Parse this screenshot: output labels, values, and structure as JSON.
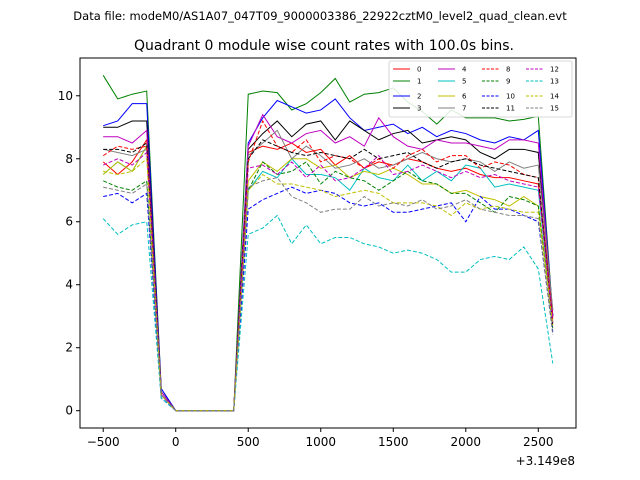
{
  "chart_data": {
    "type": "line",
    "suptitle": "Data file: modeM0/AS1A07_047T09_9000003386_22922cztM0_level2_quad_clean.evt",
    "title": "Quadrant 0 module wise count rates with 100.0s bins.",
    "xlabel": "",
    "ylabel": "",
    "x_offset_label": "+3.149e8",
    "xlim": [
      -660,
      2760
    ],
    "ylim": [
      -0.55,
      11.2
    ],
    "xticks": [
      -500,
      0,
      500,
      1000,
      1500,
      2000,
      2500
    ],
    "xtick_labels": [
      "−500",
      "0",
      "500",
      "1000",
      "1500",
      "2000",
      "2500"
    ],
    "yticks": [
      0,
      2,
      4,
      6,
      8,
      10
    ],
    "ytick_labels": [
      "0",
      "2",
      "4",
      "6",
      "8",
      "10"
    ],
    "grid": false,
    "legend_position": "top-right",
    "x": [
      -500,
      -400,
      -300,
      -200,
      -100,
      0,
      100,
      200,
      300,
      400,
      500,
      600,
      700,
      800,
      900,
      1000,
      1100,
      1200,
      1300,
      1400,
      1500,
      1600,
      1700,
      1800,
      1900,
      2000,
      2100,
      2200,
      2300,
      2400,
      2500,
      2600
    ],
    "series": [
      {
        "name": "0",
        "color": "#ff0000",
        "dash": "solid",
        "values": [
          7.9,
          7.5,
          7.9,
          8.6,
          0.5,
          0,
          0,
          0,
          0,
          0,
          8.2,
          8.4,
          8.3,
          8.5,
          8.2,
          8.3,
          7.8,
          8.1,
          7.7,
          7.9,
          7.8,
          8.0,
          7.9,
          7.7,
          7.6,
          7.7,
          7.5,
          7.4,
          7.4,
          7.3,
          7.2,
          3.2
        ]
      },
      {
        "name": "1",
        "color": "#008000",
        "dash": "solid",
        "values": [
          10.65,
          9.9,
          10.05,
          10.15,
          0.7,
          0,
          0,
          0,
          0,
          0,
          10.05,
          10.15,
          10.1,
          9.55,
          9.75,
          10.1,
          10.55,
          9.8,
          10.05,
          10.1,
          10.25,
          9.8,
          9.5,
          9.1,
          9.55,
          9.3,
          9.3,
          9.3,
          9.2,
          9.25,
          9.35,
          3.0
        ]
      },
      {
        "name": "2",
        "color": "#0000ff",
        "dash": "solid",
        "values": [
          9.05,
          9.2,
          9.75,
          9.75,
          0.7,
          0,
          0,
          0,
          0,
          0,
          8.5,
          9.3,
          9.85,
          9.65,
          9.45,
          9.55,
          9.9,
          9.3,
          8.9,
          9.0,
          9.1,
          8.8,
          9.0,
          8.7,
          8.9,
          8.8,
          8.6,
          8.5,
          8.7,
          8.6,
          8.9,
          3.0
        ]
      },
      {
        "name": "3",
        "color": "#000000",
        "dash": "solid",
        "values": [
          9.0,
          9.0,
          9.2,
          9.2,
          0.6,
          0,
          0,
          0,
          0,
          0,
          8.3,
          8.8,
          9.2,
          8.7,
          9.1,
          9.2,
          8.6,
          9.2,
          8.9,
          8.6,
          8.8,
          8.9,
          8.5,
          8.6,
          8.7,
          8.6,
          8.2,
          8.0,
          8.3,
          8.3,
          8.2,
          3.0
        ]
      },
      {
        "name": "4",
        "color": "#bf00bf",
        "dash": "solid",
        "values": [
          8.7,
          8.7,
          8.5,
          8.9,
          0.6,
          0,
          0,
          0,
          0,
          0,
          8.4,
          9.4,
          8.7,
          8.5,
          8.8,
          8.9,
          8.5,
          8.7,
          8.4,
          9.3,
          8.7,
          8.4,
          8.3,
          8.6,
          8.5,
          8.5,
          8.4,
          8.3,
          8.6,
          8.6,
          8.5,
          3.0
        ]
      },
      {
        "name": "5",
        "color": "#00bfbf",
        "dash": "solid",
        "values": [
          7.5,
          7.9,
          7.6,
          8.4,
          0.5,
          0,
          0,
          0,
          0,
          0,
          7.0,
          7.6,
          7.4,
          8.0,
          7.5,
          7.5,
          7.4,
          7.0,
          7.7,
          7.4,
          7.3,
          7.8,
          7.3,
          7.6,
          7.3,
          7.8,
          7.7,
          7.1,
          7.2,
          7.1,
          7.0,
          2.8
        ]
      },
      {
        "name": "6",
        "color": "#bfbf00",
        "dash": "solid",
        "values": [
          7.5,
          7.9,
          7.6,
          8.4,
          0.5,
          0,
          0,
          0,
          0,
          0,
          7.3,
          7.9,
          7.6,
          8.0,
          8.0,
          7.7,
          7.8,
          7.4,
          7.6,
          7.5,
          7.7,
          7.5,
          7.2,
          7.2,
          6.9,
          7.0,
          6.8,
          6.7,
          6.5,
          6.8,
          6.5,
          2.8
        ]
      },
      {
        "name": "7",
        "color": "#808080",
        "dash": "solid",
        "values": [
          8.3,
          8.2,
          8.1,
          8.3,
          0.5,
          0,
          0,
          0,
          0,
          0,
          8.1,
          8.5,
          8.9,
          8.0,
          8.4,
          8.1,
          7.7,
          7.8,
          8.0,
          7.7,
          7.8,
          8.0,
          8.2,
          8.0,
          7.9,
          8.0,
          7.9,
          7.6,
          7.9,
          7.7,
          7.8,
          3.2
        ]
      },
      {
        "name": "8",
        "color": "#ff0000",
        "dash": "dashed",
        "values": [
          8.1,
          8.4,
          8.3,
          8.4,
          0.5,
          0,
          0,
          0,
          0,
          0,
          7.9,
          9.2,
          8.4,
          8.2,
          8.6,
          7.9,
          8.1,
          8.0,
          7.7,
          8.0,
          7.7,
          8.1,
          8.3,
          7.9,
          8.1,
          8.1,
          7.7,
          7.9,
          7.8,
          7.5,
          7.4,
          2.9
        ]
      },
      {
        "name": "9",
        "color": "#008000",
        "dash": "dashed",
        "values": [
          7.3,
          7.1,
          7.0,
          7.3,
          0.5,
          0,
          0,
          0,
          0,
          0,
          7.0,
          7.9,
          7.5,
          7.6,
          7.9,
          7.2,
          7.6,
          7.4,
          7.3,
          7.0,
          7.3,
          7.6,
          7.3,
          7.2,
          6.9,
          6.9,
          6.6,
          6.3,
          6.8,
          6.7,
          6.5,
          2.6
        ]
      },
      {
        "name": "10",
        "color": "#0000ff",
        "dash": "dashed",
        "values": [
          6.8,
          6.9,
          6.6,
          6.9,
          0.4,
          0,
          0,
          0,
          0,
          0,
          6.4,
          6.7,
          6.9,
          7.1,
          6.9,
          7.0,
          6.9,
          6.6,
          6.5,
          6.6,
          6.3,
          6.3,
          6.4,
          6.5,
          6.6,
          6.0,
          6.8,
          6.4,
          6.4,
          6.2,
          6.0,
          2.5
        ]
      },
      {
        "name": "11",
        "color": "#000000",
        "dash": "dashed",
        "values": [
          8.3,
          8.3,
          8.2,
          8.5,
          0.5,
          0,
          0,
          0,
          0,
          0,
          8.0,
          8.6,
          8.4,
          8.2,
          8.1,
          8.2,
          8.1,
          8.0,
          8.3,
          8.0,
          8.1,
          8.2,
          7.9,
          7.7,
          7.9,
          8.0,
          7.8,
          7.7,
          7.6,
          7.5,
          7.4,
          2.7
        ]
      },
      {
        "name": "12",
        "color": "#bf00bf",
        "dash": "dashed",
        "values": [
          7.8,
          8.0,
          7.8,
          8.2,
          0.5,
          0,
          0,
          0,
          0,
          0,
          7.7,
          7.8,
          7.5,
          7.9,
          7.4,
          7.8,
          7.3,
          7.4,
          7.7,
          8.1,
          7.5,
          7.6,
          7.8,
          7.6,
          7.4,
          7.6,
          7.4,
          7.5,
          7.3,
          7.2,
          7.1,
          2.8
        ]
      },
      {
        "name": "13",
        "color": "#00bfbf",
        "dash": "dashed",
        "values": [
          6.1,
          5.6,
          5.9,
          6.0,
          0.4,
          0,
          0,
          0,
          0,
          0,
          5.6,
          5.8,
          6.2,
          5.3,
          5.9,
          5.3,
          5.5,
          5.5,
          5.3,
          5.2,
          5.0,
          5.1,
          5.0,
          4.8,
          4.4,
          4.4,
          4.8,
          4.9,
          4.8,
          5.2,
          4.5,
          1.5
        ]
      },
      {
        "name": "14",
        "color": "#bfbf00",
        "dash": "dashed",
        "values": [
          7.6,
          7.5,
          7.6,
          8.0,
          0.5,
          0,
          0,
          0,
          0,
          0,
          7.0,
          7.5,
          7.2,
          7.2,
          7.1,
          7.0,
          6.8,
          6.9,
          7.0,
          6.9,
          6.6,
          6.6,
          6.6,
          6.5,
          6.2,
          6.6,
          6.4,
          6.5,
          6.4,
          6.3,
          6.3,
          2.7
        ]
      },
      {
        "name": "15",
        "color": "#808080",
        "dash": "dashed",
        "values": [
          7.1,
          7.0,
          6.9,
          7.2,
          0.5,
          0,
          0,
          0,
          0,
          0,
          7.1,
          7.3,
          7.4,
          6.8,
          6.6,
          6.3,
          6.4,
          6.4,
          6.8,
          6.5,
          6.6,
          6.5,
          6.7,
          6.4,
          6.5,
          6.7,
          6.4,
          6.3,
          6.2,
          6.2,
          6.1,
          2.4
        ]
      }
    ]
  }
}
